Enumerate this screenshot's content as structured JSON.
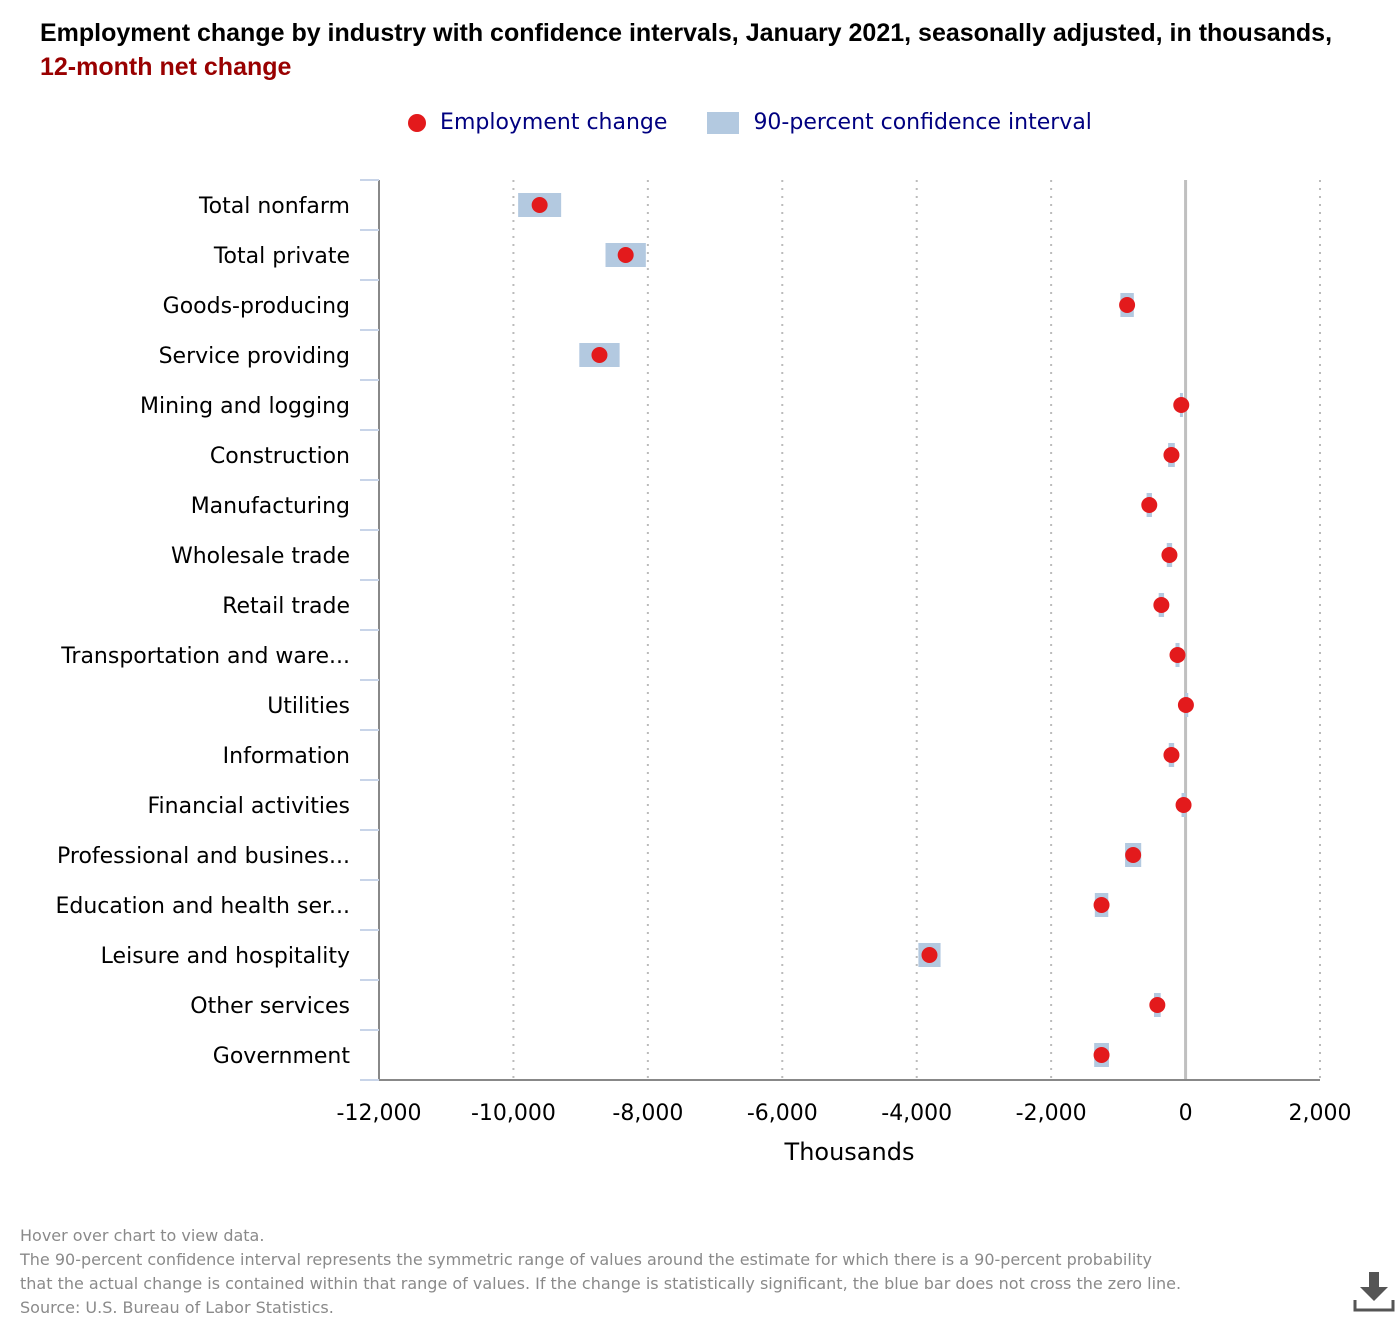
{
  "title": {
    "main": "Employment change by industry with confidence intervals, January 2021, seasonally adjusted, in thousands, ",
    "highlight": "12-month net change"
  },
  "legend": [
    {
      "label": "Employment change",
      "icon": "red-dot"
    },
    {
      "label": "90-percent confidence interval",
      "icon": "blue-box"
    }
  ],
  "colors": {
    "point": "#e31a1c",
    "interval": "#b3c9e0",
    "highlight": "#990000",
    "legend_text": "#000080"
  },
  "chart_data": {
    "type": "scatter",
    "orientation": "horizontal",
    "xlabel": "Thousands",
    "xlim": [
      -12000,
      2000
    ],
    "xticks": [
      -12000,
      -10000,
      -8000,
      -6000,
      -4000,
      -2000,
      0,
      2000
    ],
    "xtick_labels": [
      "-12,000",
      "-10,000",
      "-8,000",
      "-6,000",
      "-4,000",
      "-2,000",
      "0",
      "2,000"
    ],
    "grid": "vertical dotted",
    "legend_position": "top",
    "categories": [
      "Total nonfarm",
      "Total private",
      "Goods-producing",
      "Service providing",
      "Mining and logging",
      "Construction",
      "Manufacturing",
      "Wholesale trade",
      "Retail trade",
      "Transportation and ware...",
      "Utilities",
      "Information",
      "Financial activities",
      "Professional and busines...",
      "Education and health ser...",
      "Leisure and hospitality",
      "Other services",
      "Government"
    ],
    "series": [
      {
        "name": "Employment change",
        "values": [
          -9610,
          -8330,
          -870,
          -8720,
          -64,
          -210,
          -540,
          -240,
          -360,
          -120,
          5,
          -210,
          -30,
          -780,
          -1250,
          -3810,
          -420,
          -1250
        ]
      },
      {
        "name": "90-percent confidence interval",
        "half_width": [
          320,
          300,
          100,
          300,
          20,
          50,
          40,
          40,
          40,
          30,
          10,
          40,
          30,
          120,
          100,
          165,
          50,
          110
        ]
      }
    ]
  },
  "notes": [
    "Hover over chart to view data.",
    "The 90-percent confidence interval represents the symmetric range of values around the estimate for which there is a 90-percent probability",
    "that the actual change is contained within that range of values. If the change is statistically significant, the blue bar does not cross the zero line.",
    "Source: U.S. Bureau of Labor Statistics."
  ]
}
